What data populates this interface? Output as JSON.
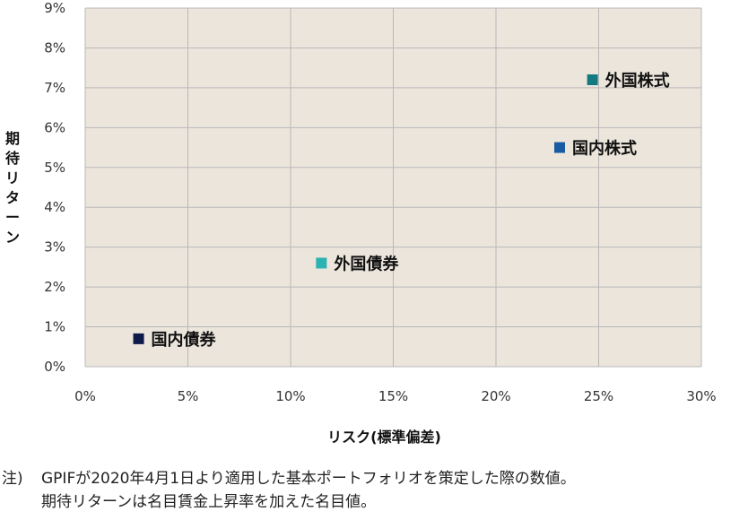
{
  "chart_data": {
    "type": "scatter",
    "title": "",
    "xlabel": "リスク(標準偏差)",
    "ylabel": "期待リターン",
    "xlim": [
      0,
      30
    ],
    "ylim": [
      0,
      9
    ],
    "x_ticks": [
      "0%",
      "5%",
      "10%",
      "15%",
      "20%",
      "25%",
      "30%"
    ],
    "y_ticks": [
      "0%",
      "1%",
      "2%",
      "3%",
      "4%",
      "5%",
      "6%",
      "7%",
      "8%",
      "9%"
    ],
    "grid": true,
    "plot_background": "#ebe5dc",
    "points": [
      {
        "label": "国内債券",
        "x": 2.6,
        "y": 0.7,
        "color": "#0d1a4a"
      },
      {
        "label": "外国債券",
        "x": 11.5,
        "y": 2.6,
        "color": "#2bb3b1"
      },
      {
        "label": "国内株式",
        "x": 23.1,
        "y": 5.5,
        "color": "#1a5aa0"
      },
      {
        "label": "外国株式",
        "x": 24.7,
        "y": 7.2,
        "color": "#137a82"
      }
    ]
  },
  "note": {
    "prefix": "注)",
    "line1": "GPIFが2020年4月1日より適用した基本ポートフォリオを策定した際の数値。",
    "line2": "期待リターンは名目賃金上昇率を加えた名目値。"
  }
}
